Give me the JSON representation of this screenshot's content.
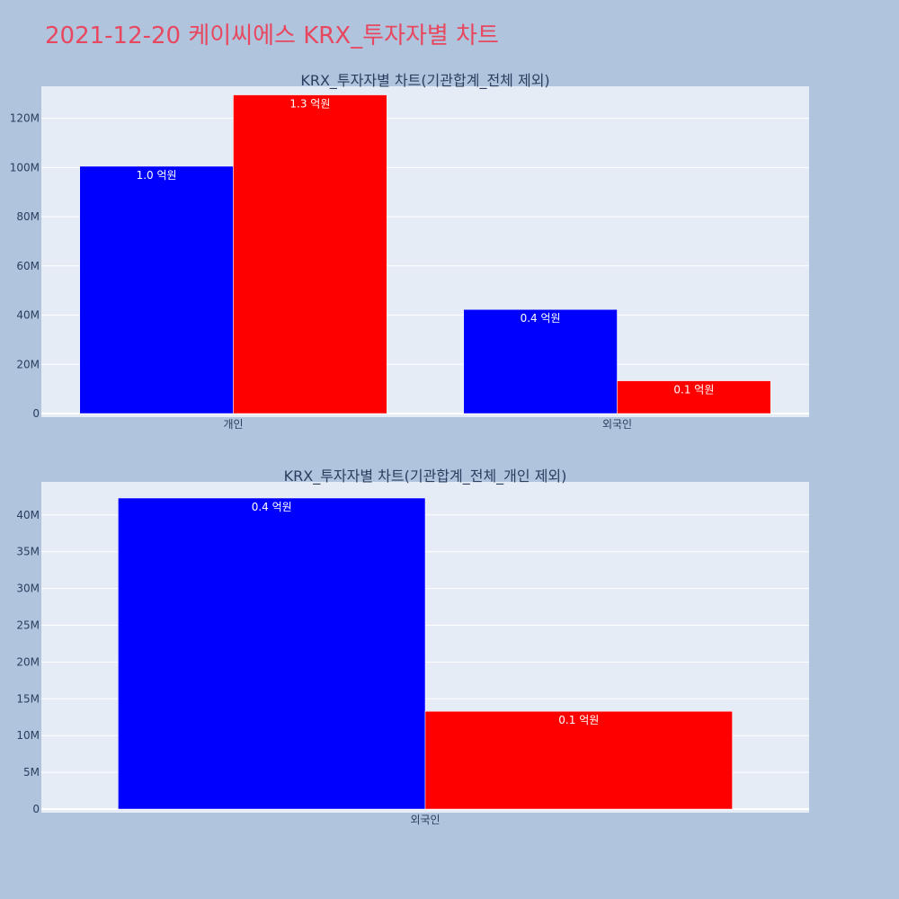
{
  "title": "2021-12-20 케이씨에스 KRX_투자자별 차트",
  "colors": {
    "background": "#b0c4de",
    "plot_background": "#e5ecf6",
    "title": "#e8485f",
    "buy": "#0000ff",
    "sell": "#ff0000"
  },
  "chart_data": [
    {
      "type": "bar",
      "title": "KRX_투자자별 차트(기관합계_전체 제외)",
      "categories": [
        "개인",
        "외국인"
      ],
      "series": [
        {
          "color": "#0000ff",
          "values": [
            100500000,
            42300000
          ],
          "labels": [
            "1.0 억원",
            "0.4 억원"
          ]
        },
        {
          "color": "#ff0000",
          "values": [
            129500000,
            13300000
          ],
          "labels": [
            "1.3 억원",
            "0.1 억원"
          ]
        }
      ],
      "ylim": [
        0,
        133000000
      ],
      "yticks": [
        0,
        20000000,
        40000000,
        60000000,
        80000000,
        100000000,
        120000000
      ],
      "ytick_labels": [
        "0",
        "20M",
        "40M",
        "60M",
        "80M",
        "100M",
        "120M"
      ],
      "grid": true
    },
    {
      "type": "bar",
      "title": "KRX_투자자별 차트(기관합계_전체_개인 제외)",
      "categories": [
        "외국인"
      ],
      "series": [
        {
          "color": "#0000ff",
          "values": [
            42300000
          ],
          "labels": [
            "0.4 억원"
          ]
        },
        {
          "color": "#ff0000",
          "values": [
            13300000
          ],
          "labels": [
            "0.1 억원"
          ]
        }
      ],
      "ylim": [
        0,
        44500000
      ],
      "yticks": [
        0,
        5000000,
        10000000,
        15000000,
        20000000,
        25000000,
        30000000,
        35000000,
        40000000
      ],
      "ytick_labels": [
        "0",
        "5M",
        "10M",
        "15M",
        "20M",
        "25M",
        "30M",
        "35M",
        "40M"
      ],
      "grid": true
    }
  ]
}
